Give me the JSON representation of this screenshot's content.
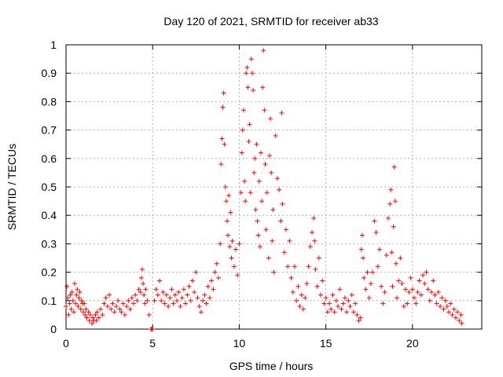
{
  "chart_data": {
    "type": "scatter",
    "title": "Day 120 of 2021, SRMTID for receiver ab33",
    "xlabel": "GPS time / hours",
    "ylabel": "SRMTID / TECUs",
    "xlim": [
      0,
      24
    ],
    "ylim": [
      0,
      1
    ],
    "xticks": [
      "0",
      "5",
      "10",
      "15",
      "20"
    ],
    "yticks": [
      "0",
      "0.1",
      "0.2",
      "0.3",
      "0.4",
      "0.5",
      "0.6",
      "0.7",
      "0.8",
      "0.9",
      "1"
    ],
    "grid": true,
    "marker": "plus",
    "series": [
      {
        "name": "SRMTID",
        "color": "#ff0000",
        "points": [
          [
            0.0,
            0.08
          ],
          [
            0.05,
            0.15
          ],
          [
            0.1,
            0.11
          ],
          [
            0.15,
            0.05
          ],
          [
            0.2,
            0.09
          ],
          [
            0.25,
            0.12
          ],
          [
            0.3,
            0.07
          ],
          [
            0.35,
            0.13
          ],
          [
            0.4,
            0.1
          ],
          [
            0.45,
            0.06
          ],
          [
            0.5,
            0.16
          ],
          [
            0.55,
            0.09
          ],
          [
            0.6,
            0.12
          ],
          [
            0.65,
            0.14
          ],
          [
            0.7,
            0.08
          ],
          [
            0.75,
            0.11
          ],
          [
            0.8,
            0.13
          ],
          [
            0.85,
            0.07
          ],
          [
            0.9,
            0.1
          ],
          [
            0.95,
            0.09
          ],
          [
            1.0,
            0.06
          ],
          [
            1.05,
            0.09
          ],
          [
            1.1,
            0.05
          ],
          [
            1.15,
            0.07
          ],
          [
            1.2,
            0.04
          ],
          [
            1.3,
            0.06
          ],
          [
            1.35,
            0.03
          ],
          [
            1.4,
            0.05
          ],
          [
            1.5,
            0.02
          ],
          [
            1.55,
            0.04
          ],
          [
            1.6,
            0.03
          ],
          [
            1.7,
            0.05
          ],
          [
            1.75,
            0.03
          ],
          [
            1.8,
            0.06
          ],
          [
            1.9,
            0.04
          ],
          [
            2.0,
            0.07
          ],
          [
            2.1,
            0.05
          ],
          [
            2.2,
            0.09
          ],
          [
            2.3,
            0.11
          ],
          [
            2.4,
            0.08
          ],
          [
            2.5,
            0.12
          ],
          [
            2.6,
            0.07
          ],
          [
            2.7,
            0.09
          ],
          [
            2.8,
            0.06
          ],
          [
            2.9,
            0.08
          ],
          [
            3.0,
            0.1
          ],
          [
            3.1,
            0.07
          ],
          [
            3.2,
            0.06
          ],
          [
            3.3,
            0.09
          ],
          [
            3.4,
            0.05
          ],
          [
            3.5,
            0.08
          ],
          [
            3.6,
            0.1
          ],
          [
            3.7,
            0.07
          ],
          [
            3.8,
            0.11
          ],
          [
            3.9,
            0.09
          ],
          [
            4.0,
            0.12
          ],
          [
            4.1,
            0.1
          ],
          [
            4.2,
            0.14
          ],
          [
            4.3,
            0.13
          ],
          [
            4.35,
            0.18
          ],
          [
            4.4,
            0.21
          ],
          [
            4.45,
            0.16
          ],
          [
            4.5,
            0.12
          ],
          [
            4.55,
            0.09
          ],
          [
            4.6,
            0.14
          ],
          [
            4.7,
            0.1
          ],
          [
            4.8,
            0.05
          ],
          [
            4.9,
            0.0
          ],
          [
            4.95,
            0.0
          ],
          [
            5.0,
            0.0
          ],
          [
            5.1,
            0.1
          ],
          [
            5.2,
            0.14
          ],
          [
            5.3,
            0.12
          ],
          [
            5.4,
            0.17
          ],
          [
            5.5,
            0.1
          ],
          [
            5.6,
            0.13
          ],
          [
            5.7,
            0.09
          ],
          [
            5.8,
            0.12
          ],
          [
            5.9,
            0.08
          ],
          [
            6.0,
            0.11
          ],
          [
            6.1,
            0.14
          ],
          [
            6.2,
            0.09
          ],
          [
            6.3,
            0.12
          ],
          [
            6.4,
            0.1
          ],
          [
            6.5,
            0.13
          ],
          [
            6.6,
            0.08
          ],
          [
            6.7,
            0.11
          ],
          [
            6.8,
            0.14
          ],
          [
            6.9,
            0.09
          ],
          [
            7.0,
            0.12
          ],
          [
            7.1,
            0.15
          ],
          [
            7.2,
            0.1
          ],
          [
            7.3,
            0.17
          ],
          [
            7.4,
            0.13
          ],
          [
            7.5,
            0.2
          ],
          [
            7.6,
            0.11
          ],
          [
            7.7,
            0.08
          ],
          [
            7.8,
            0.06
          ],
          [
            7.9,
            0.1
          ],
          [
            8.0,
            0.12
          ],
          [
            8.1,
            0.09
          ],
          [
            8.2,
            0.15
          ],
          [
            8.3,
            0.11
          ],
          [
            8.4,
            0.17
          ],
          [
            8.5,
            0.14
          ],
          [
            8.6,
            0.2
          ],
          [
            8.7,
            0.23
          ],
          [
            8.8,
            0.18
          ],
          [
            8.9,
            0.3
          ],
          [
            8.95,
            0.58
          ],
          [
            9.0,
            0.67
          ],
          [
            9.05,
            0.78
          ],
          [
            9.1,
            0.83
          ],
          [
            9.15,
            0.65
          ],
          [
            9.2,
            0.5
          ],
          [
            9.25,
            0.45
          ],
          [
            9.3,
            0.38
          ],
          [
            9.35,
            0.33
          ],
          [
            9.4,
            0.47
          ],
          [
            9.45,
            0.29
          ],
          [
            9.5,
            0.41
          ],
          [
            9.55,
            0.25
          ],
          [
            9.6,
            0.31
          ],
          [
            9.7,
            0.22
          ],
          [
            9.8,
            0.28
          ],
          [
            9.9,
            0.19
          ],
          [
            10.0,
            0.3
          ],
          [
            10.1,
            0.48
          ],
          [
            10.15,
            0.62
          ],
          [
            10.2,
            0.7
          ],
          [
            10.25,
            0.77
          ],
          [
            10.3,
            0.52
          ],
          [
            10.35,
            0.45
          ],
          [
            10.4,
            0.9
          ],
          [
            10.45,
            0.92
          ],
          [
            10.5,
            0.85
          ],
          [
            10.55,
            0.66
          ],
          [
            10.6,
            0.72
          ],
          [
            10.65,
            0.48
          ],
          [
            10.7,
            0.95
          ],
          [
            10.75,
            0.9
          ],
          [
            10.8,
            0.84
          ],
          [
            10.85,
            0.55
          ],
          [
            10.9,
            0.6
          ],
          [
            10.95,
            0.42
          ],
          [
            11.0,
            0.65
          ],
          [
            11.05,
            0.38
          ],
          [
            11.1,
            0.33
          ],
          [
            11.15,
            0.52
          ],
          [
            11.2,
            0.29
          ],
          [
            11.25,
            0.62
          ],
          [
            11.3,
            0.45
          ],
          [
            11.35,
            0.85
          ],
          [
            11.4,
            0.98
          ],
          [
            11.45,
            0.77
          ],
          [
            11.5,
            0.58
          ],
          [
            11.55,
            0.35
          ],
          [
            11.6,
            0.48
          ],
          [
            11.7,
            0.25
          ],
          [
            11.75,
            0.61
          ],
          [
            11.8,
            0.74
          ],
          [
            11.85,
            0.55
          ],
          [
            11.9,
            0.31
          ],
          [
            11.95,
            0.42
          ],
          [
            12.0,
            0.2
          ],
          [
            12.1,
            0.68
          ],
          [
            12.2,
            0.53
          ],
          [
            12.3,
            0.49
          ],
          [
            12.4,
            0.38
          ],
          [
            12.45,
            0.76
          ],
          [
            12.5,
            0.44
          ],
          [
            12.6,
            0.27
          ],
          [
            12.7,
            0.35
          ],
          [
            12.8,
            0.22
          ],
          [
            12.9,
            0.31
          ],
          [
            13.0,
            0.18
          ],
          [
            13.1,
            0.13
          ],
          [
            13.2,
            0.22
          ],
          [
            13.3,
            0.1
          ],
          [
            13.4,
            0.15
          ],
          [
            13.5,
            0.08
          ],
          [
            13.6,
            0.12
          ],
          [
            13.7,
            0.07
          ],
          [
            13.8,
            0.11
          ],
          [
            13.9,
            0.16
          ],
          [
            14.0,
            0.22
          ],
          [
            14.1,
            0.29
          ],
          [
            14.2,
            0.34
          ],
          [
            14.3,
            0.39
          ],
          [
            14.35,
            0.31
          ],
          [
            14.4,
            0.21
          ],
          [
            14.5,
            0.15
          ],
          [
            14.6,
            0.25
          ],
          [
            14.7,
            0.12
          ],
          [
            14.8,
            0.17
          ],
          [
            14.9,
            0.09
          ],
          [
            15.0,
            0.11
          ],
          [
            15.1,
            0.06
          ],
          [
            15.2,
            0.09
          ],
          [
            15.3,
            0.07
          ],
          [
            15.4,
            0.12
          ],
          [
            15.5,
            0.06
          ],
          [
            15.6,
            0.1
          ],
          [
            15.7,
            0.08
          ],
          [
            15.8,
            0.14
          ],
          [
            15.9,
            0.07
          ],
          [
            16.0,
            0.09
          ],
          [
            16.1,
            0.11
          ],
          [
            16.2,
            0.06
          ],
          [
            16.3,
            0.1
          ],
          [
            16.4,
            0.08
          ],
          [
            16.5,
            0.12
          ],
          [
            16.6,
            0.06
          ],
          [
            16.7,
            0.09
          ],
          [
            16.8,
            0.05
          ],
          [
            16.9,
            0.03
          ],
          [
            17.0,
            0.04
          ],
          [
            17.05,
            0.28
          ],
          [
            17.1,
            0.33
          ],
          [
            17.15,
            0.25
          ],
          [
            17.2,
            0.18
          ],
          [
            17.3,
            0.14
          ],
          [
            17.4,
            0.2
          ],
          [
            17.5,
            0.11
          ],
          [
            17.6,
            0.16
          ],
          [
            17.7,
            0.2
          ],
          [
            17.8,
            0.38
          ],
          [
            17.9,
            0.34
          ],
          [
            18.0,
            0.22
          ],
          [
            18.1,
            0.28
          ],
          [
            18.2,
            0.15
          ],
          [
            18.3,
            0.09
          ],
          [
            18.4,
            0.13
          ],
          [
            18.5,
            0.26
          ],
          [
            18.6,
            0.39
          ],
          [
            18.7,
            0.44
          ],
          [
            18.75,
            0.49
          ],
          [
            18.8,
            0.27
          ],
          [
            18.85,
            0.15
          ],
          [
            18.9,
            0.36
          ],
          [
            18.95,
            0.57
          ],
          [
            19.0,
            0.45
          ],
          [
            19.05,
            0.23
          ],
          [
            19.1,
            0.11
          ],
          [
            19.2,
            0.17
          ],
          [
            19.3,
            0.25
          ],
          [
            19.4,
            0.16
          ],
          [
            19.5,
            0.08
          ],
          [
            19.6,
            0.14
          ],
          [
            19.7,
            0.09
          ],
          [
            19.8,
            0.13
          ],
          [
            19.9,
            0.18
          ],
          [
            20.0,
            0.14
          ],
          [
            20.1,
            0.11
          ],
          [
            20.2,
            0.09
          ],
          [
            20.3,
            0.13
          ],
          [
            20.4,
            0.17
          ],
          [
            20.5,
            0.12
          ],
          [
            20.6,
            0.19
          ],
          [
            20.7,
            0.16
          ],
          [
            20.8,
            0.2
          ],
          [
            20.9,
            0.14
          ],
          [
            21.0,
            0.1
          ],
          [
            21.1,
            0.13
          ],
          [
            21.2,
            0.17
          ],
          [
            21.3,
            0.12
          ],
          [
            21.4,
            0.09
          ],
          [
            21.5,
            0.13
          ],
          [
            21.6,
            0.08
          ],
          [
            21.7,
            0.11
          ],
          [
            21.8,
            0.07
          ],
          [
            21.9,
            0.1
          ],
          [
            22.0,
            0.08
          ],
          [
            22.1,
            0.06
          ],
          [
            22.2,
            0.09
          ],
          [
            22.3,
            0.05
          ],
          [
            22.4,
            0.07
          ],
          [
            22.5,
            0.04
          ],
          [
            22.6,
            0.06
          ],
          [
            22.7,
            0.03
          ],
          [
            22.8,
            0.05
          ],
          [
            22.85,
            0.02
          ]
        ]
      }
    ]
  }
}
